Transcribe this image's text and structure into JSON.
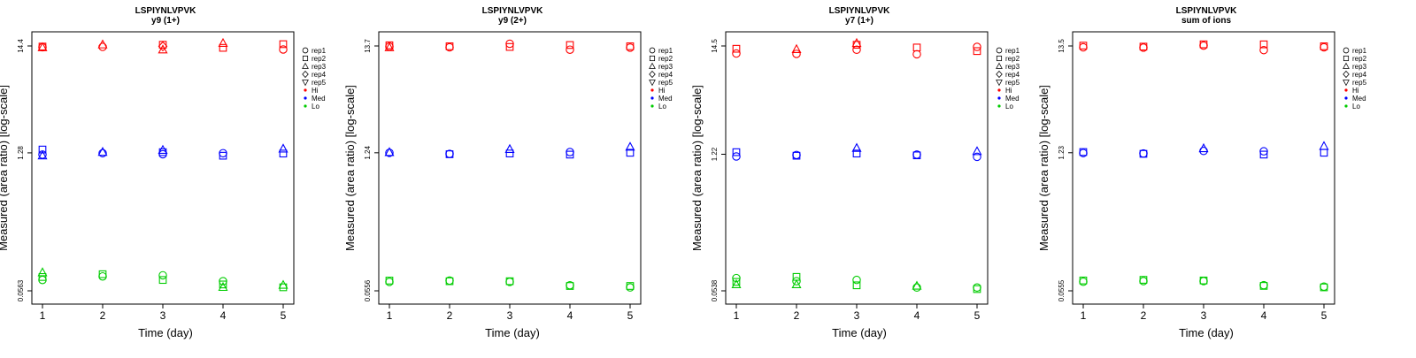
{
  "legend": {
    "shape_entries": [
      {
        "label": "rep1",
        "shape": "circle"
      },
      {
        "label": "rep2",
        "shape": "square"
      },
      {
        "label": "rep3",
        "shape": "triangle-up"
      },
      {
        "label": "rep4",
        "shape": "diamond"
      },
      {
        "label": "rep5",
        "shape": "triangle-down"
      }
    ],
    "color_entries": [
      {
        "label": "Hi",
        "color": "#ff0000"
      },
      {
        "label": "Med",
        "color": "#0000ff"
      },
      {
        "label": "Lo",
        "color": "#00cc00"
      }
    ]
  },
  "chart_data": [
    {
      "type": "scatter",
      "title": "LSPIYNLVPVK",
      "subtitle": "y9 (1+)",
      "xlabel": "Time (day)",
      "ylabel": "Measured (area ratio) [log-scale]",
      "y_scale": "log",
      "x_ticks": [
        1,
        2,
        3,
        4,
        5
      ],
      "y_ticks": [
        "0.0563",
        "1.28",
        "14.4"
      ],
      "grid": false,
      "legend_position": "right",
      "series": [
        {
          "name": "Hi",
          "color": "#ff0000",
          "values": [
            {
              "x": 1,
              "rep": "rep1",
              "y": 14.0
            },
            {
              "x": 1,
              "rep": "rep2",
              "y": 14.2
            },
            {
              "x": 1,
              "rep": "rep3",
              "y": 13.9
            },
            {
              "x": 2,
              "rep": "rep1",
              "y": 14.1
            },
            {
              "x": 2,
              "rep": "rep3",
              "y": 14.8
            },
            {
              "x": 3,
              "rep": "rep2",
              "y": 14.8
            },
            {
              "x": 3,
              "rep": "rep3",
              "y": 13.2
            },
            {
              "x": 3,
              "rep": "rep4",
              "y": 14.3
            },
            {
              "x": 4,
              "rep": "rep2",
              "y": 13.8
            },
            {
              "x": 4,
              "rep": "rep3",
              "y": 15.3
            },
            {
              "x": 5,
              "rep": "rep1",
              "y": 13.3
            },
            {
              "x": 5,
              "rep": "rep2",
              "y": 15.0
            }
          ]
        },
        {
          "name": "Med",
          "color": "#0000ff",
          "values": [
            {
              "x": 1,
              "rep": "rep1",
              "y": 1.23
            },
            {
              "x": 1,
              "rep": "rep2",
              "y": 1.38
            },
            {
              "x": 1,
              "rep": "rep3",
              "y": 1.2
            },
            {
              "x": 2,
              "rep": "rep1",
              "y": 1.27
            },
            {
              "x": 2,
              "rep": "rep3",
              "y": 1.3
            },
            {
              "x": 3,
              "rep": "rep1",
              "y": 1.24
            },
            {
              "x": 3,
              "rep": "rep2",
              "y": 1.3
            },
            {
              "x": 3,
              "rep": "rep3",
              "y": 1.36
            },
            {
              "x": 4,
              "rep": "rep1",
              "y": 1.27
            },
            {
              "x": 4,
              "rep": "rep2",
              "y": 1.2
            },
            {
              "x": 5,
              "rep": "rep2",
              "y": 1.26
            },
            {
              "x": 5,
              "rep": "rep3",
              "y": 1.4
            }
          ]
        },
        {
          "name": "Lo",
          "color": "#00cc00",
          "values": [
            {
              "x": 1,
              "rep": "rep1",
              "y": 0.072
            },
            {
              "x": 1,
              "rep": "rep2",
              "y": 0.077
            },
            {
              "x": 1,
              "rep": "rep3",
              "y": 0.085
            },
            {
              "x": 2,
              "rep": "rep1",
              "y": 0.078
            },
            {
              "x": 2,
              "rep": "rep2",
              "y": 0.082
            },
            {
              "x": 3,
              "rep": "rep1",
              "y": 0.08
            },
            {
              "x": 3,
              "rep": "rep2",
              "y": 0.072
            },
            {
              "x": 4,
              "rep": "rep1",
              "y": 0.07
            },
            {
              "x": 4,
              "rep": "rep2",
              "y": 0.065
            },
            {
              "x": 4,
              "rep": "rep3",
              "y": 0.061
            },
            {
              "x": 5,
              "rep": "rep2",
              "y": 0.061
            },
            {
              "x": 5,
              "rep": "rep3",
              "y": 0.064
            }
          ]
        }
      ]
    },
    {
      "type": "scatter",
      "title": "LSPIYNLVPVK",
      "subtitle": "y9 (2+)",
      "xlabel": "Time (day)",
      "ylabel": "Measured (area ratio) [log-scale]",
      "y_scale": "log",
      "x_ticks": [
        1,
        2,
        3,
        4,
        5
      ],
      "y_ticks": [
        "0.0556",
        "1.24",
        "13.7"
      ],
      "grid": false,
      "legend_position": "right",
      "series": [
        {
          "name": "Hi",
          "color": "#ff0000",
          "values": [
            {
              "x": 1,
              "rep": "rep1",
              "y": 13.5
            },
            {
              "x": 1,
              "rep": "rep2",
              "y": 13.9
            },
            {
              "x": 1,
              "rep": "rep3",
              "y": 13.2
            },
            {
              "x": 2,
              "rep": "rep1",
              "y": 13.3
            },
            {
              "x": 2,
              "rep": "rep2",
              "y": 13.6
            },
            {
              "x": 3,
              "rep": "rep1",
              "y": 14.4
            },
            {
              "x": 3,
              "rep": "rep2",
              "y": 13.4
            },
            {
              "x": 4,
              "rep": "rep1",
              "y": 12.6
            },
            {
              "x": 4,
              "rep": "rep2",
              "y": 14.0
            },
            {
              "x": 5,
              "rep": "rep1",
              "y": 13.2
            },
            {
              "x": 5,
              "rep": "rep2",
              "y": 13.6
            }
          ]
        },
        {
          "name": "Med",
          "color": "#0000ff",
          "values": [
            {
              "x": 1,
              "rep": "rep1",
              "y": 1.24
            },
            {
              "x": 1,
              "rep": "rep3",
              "y": 1.25
            },
            {
              "x": 2,
              "rep": "rep1",
              "y": 1.21
            },
            {
              "x": 2,
              "rep": "rep2",
              "y": 1.2
            },
            {
              "x": 3,
              "rep": "rep2",
              "y": 1.22
            },
            {
              "x": 3,
              "rep": "rep3",
              "y": 1.34
            },
            {
              "x": 4,
              "rep": "rep1",
              "y": 1.26
            },
            {
              "x": 4,
              "rep": "rep2",
              "y": 1.19
            },
            {
              "x": 5,
              "rep": "rep2",
              "y": 1.24
            },
            {
              "x": 5,
              "rep": "rep3",
              "y": 1.41
            }
          ]
        },
        {
          "name": "Lo",
          "color": "#00cc00",
          "values": [
            {
              "x": 1,
              "rep": "rep1",
              "y": 0.068
            },
            {
              "x": 1,
              "rep": "rep2",
              "y": 0.07
            },
            {
              "x": 2,
              "rep": "rep1",
              "y": 0.07
            },
            {
              "x": 2,
              "rep": "rep2",
              "y": 0.069
            },
            {
              "x": 3,
              "rep": "rep1",
              "y": 0.068
            },
            {
              "x": 3,
              "rep": "rep2",
              "y": 0.069
            },
            {
              "x": 4,
              "rep": "rep1",
              "y": 0.063
            },
            {
              "x": 4,
              "rep": "rep2",
              "y": 0.062
            },
            {
              "x": 5,
              "rep": "rep1",
              "y": 0.06
            },
            {
              "x": 5,
              "rep": "rep2",
              "y": 0.062
            }
          ]
        }
      ]
    },
    {
      "type": "scatter",
      "title": "LSPIYNLVPVK",
      "subtitle": "y7 (1+)",
      "xlabel": "Time (day)",
      "ylabel": "Measured (area ratio) [log-scale]",
      "y_scale": "log",
      "x_ticks": [
        1,
        2,
        3,
        4,
        5
      ],
      "y_ticks": [
        "0.0538",
        "1.22",
        "14.5"
      ],
      "grid": false,
      "legend_position": "right",
      "series": [
        {
          "name": "Hi",
          "color": "#ff0000",
          "values": [
            {
              "x": 1,
              "rep": "rep1",
              "y": 12.2
            },
            {
              "x": 1,
              "rep": "rep2",
              "y": 13.6
            },
            {
              "x": 2,
              "rep": "rep1",
              "y": 12.1
            },
            {
              "x": 2,
              "rep": "rep3",
              "y": 13.4
            },
            {
              "x": 3,
              "rep": "rep1",
              "y": 13.3
            },
            {
              "x": 3,
              "rep": "rep2",
              "y": 14.9
            },
            {
              "x": 3,
              "rep": "rep3",
              "y": 15.4
            },
            {
              "x": 4,
              "rep": "rep1",
              "y": 12.0
            },
            {
              "x": 4,
              "rep": "rep2",
              "y": 14.0
            },
            {
              "x": 5,
              "rep": "rep1",
              "y": 14.2
            },
            {
              "x": 5,
              "rep": "rep2",
              "y": 12.9
            }
          ]
        },
        {
          "name": "Med",
          "color": "#0000ff",
          "values": [
            {
              "x": 1,
              "rep": "rep1",
              "y": 1.16
            },
            {
              "x": 1,
              "rep": "rep2",
              "y": 1.28
            },
            {
              "x": 2,
              "rep": "rep1",
              "y": 1.2
            },
            {
              "x": 2,
              "rep": "rep2",
              "y": 1.18
            },
            {
              "x": 3,
              "rep": "rep2",
              "y": 1.24
            },
            {
              "x": 3,
              "rep": "rep3",
              "y": 1.4
            },
            {
              "x": 4,
              "rep": "rep1",
              "y": 1.21
            },
            {
              "x": 4,
              "rep": "rep2",
              "y": 1.19
            },
            {
              "x": 5,
              "rep": "rep1",
              "y": 1.15
            },
            {
              "x": 5,
              "rep": "rep3",
              "y": 1.3
            }
          ]
        },
        {
          "name": "Lo",
          "color": "#00cc00",
          "values": [
            {
              "x": 1,
              "rep": "rep1",
              "y": 0.072
            },
            {
              "x": 1,
              "rep": "rep2",
              "y": 0.066
            },
            {
              "x": 1,
              "rep": "rep3",
              "y": 0.062
            },
            {
              "x": 2,
              "rep": "rep1",
              "y": 0.067
            },
            {
              "x": 2,
              "rep": "rep2",
              "y": 0.074
            },
            {
              "x": 2,
              "rep": "rep3",
              "y": 0.062
            },
            {
              "x": 3,
              "rep": "rep1",
              "y": 0.069
            },
            {
              "x": 3,
              "rep": "rep2",
              "y": 0.061
            },
            {
              "x": 4,
              "rep": "rep1",
              "y": 0.058
            },
            {
              "x": 4,
              "rep": "rep3",
              "y": 0.06
            },
            {
              "x": 5,
              "rep": "rep1",
              "y": 0.058
            },
            {
              "x": 5,
              "rep": "rep2",
              "y": 0.056
            }
          ]
        }
      ]
    },
    {
      "type": "scatter",
      "title": "LSPIYNLVPVK",
      "subtitle": "sum of ions",
      "xlabel": "Time (day)",
      "ylabel": "Measured (area ratio) [log-scale]",
      "y_scale": "log",
      "x_ticks": [
        1,
        2,
        3,
        4,
        5
      ],
      "y_ticks": [
        "0.0555",
        "1.23",
        "13.5"
      ],
      "grid": false,
      "legend_position": "right",
      "series": [
        {
          "name": "Hi",
          "color": "#ff0000",
          "values": [
            {
              "x": 1,
              "rep": "rep1",
              "y": 13.1
            },
            {
              "x": 1,
              "rep": "rep2",
              "y": 13.6
            },
            {
              "x": 2,
              "rep": "rep1",
              "y": 13.0
            },
            {
              "x": 2,
              "rep": "rep2",
              "y": 13.3
            },
            {
              "x": 3,
              "rep": "rep1",
              "y": 13.6
            },
            {
              "x": 3,
              "rep": "rep2",
              "y": 14.0
            },
            {
              "x": 4,
              "rep": "rep1",
              "y": 12.3
            },
            {
              "x": 4,
              "rep": "rep2",
              "y": 14.0
            },
            {
              "x": 5,
              "rep": "rep1",
              "y": 13.1
            },
            {
              "x": 5,
              "rep": "rep2",
              "y": 13.4
            }
          ]
        },
        {
          "name": "Med",
          "color": "#0000ff",
          "values": [
            {
              "x": 1,
              "rep": "rep1",
              "y": 1.22
            },
            {
              "x": 1,
              "rep": "rep2",
              "y": 1.25
            },
            {
              "x": 2,
              "rep": "rep1",
              "y": 1.21
            },
            {
              "x": 2,
              "rep": "rep2",
              "y": 1.2
            },
            {
              "x": 3,
              "rep": "rep1",
              "y": 1.28
            },
            {
              "x": 3,
              "rep": "rep3",
              "y": 1.35
            },
            {
              "x": 4,
              "rep": "rep1",
              "y": 1.27
            },
            {
              "x": 4,
              "rep": "rep2",
              "y": 1.18
            },
            {
              "x": 5,
              "rep": "rep2",
              "y": 1.23
            },
            {
              "x": 5,
              "rep": "rep3",
              "y": 1.42
            }
          ]
        },
        {
          "name": "Lo",
          "color": "#00cc00",
          "values": [
            {
              "x": 1,
              "rep": "rep1",
              "y": 0.068
            },
            {
              "x": 1,
              "rep": "rep2",
              "y": 0.07
            },
            {
              "x": 2,
              "rep": "rep1",
              "y": 0.069
            },
            {
              "x": 2,
              "rep": "rep2",
              "y": 0.071
            },
            {
              "x": 3,
              "rep": "rep1",
              "y": 0.069
            },
            {
              "x": 3,
              "rep": "rep2",
              "y": 0.07
            },
            {
              "x": 4,
              "rep": "rep1",
              "y": 0.063
            },
            {
              "x": 4,
              "rep": "rep2",
              "y": 0.062
            },
            {
              "x": 5,
              "rep": "rep1",
              "y": 0.061
            },
            {
              "x": 5,
              "rep": "rep2",
              "y": 0.06
            }
          ]
        }
      ]
    }
  ]
}
